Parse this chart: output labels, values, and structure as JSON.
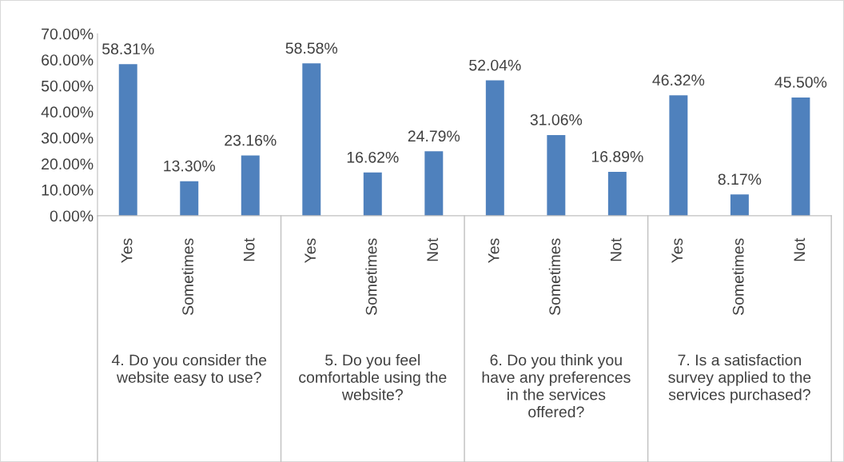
{
  "chart_data": {
    "type": "bar",
    "categories": [
      "Yes",
      "Sometimes",
      "Not",
      "Yes",
      "Sometimes",
      "Not",
      "Yes",
      "Sometimes",
      "Not",
      "Yes",
      "Sometimes",
      "Not"
    ],
    "values": [
      58.31,
      13.3,
      23.16,
      58.58,
      16.62,
      24.79,
      52.04,
      31.06,
      16.89,
      46.32,
      8.17,
      45.5
    ],
    "value_labels": [
      "58.31%",
      "13.30%",
      "23.16%",
      "58.58%",
      "16.62%",
      "24.79%",
      "52.04%",
      "31.06%",
      "16.89%",
      "46.32%",
      "8.17%",
      "45.50%"
    ],
    "color": "#4f81bd",
    "ylim": [
      0,
      70
    ],
    "yticks": [
      {
        "value": 0,
        "label": "0.00%"
      },
      {
        "value": 10,
        "label": "10.00%"
      },
      {
        "value": 20,
        "label": "20.00%"
      },
      {
        "value": 30,
        "label": "30.00%"
      },
      {
        "value": 40,
        "label": "40.00%"
      },
      {
        "value": 50,
        "label": "50.00%"
      },
      {
        "value": 60,
        "label": "60.00%"
      },
      {
        "value": 70,
        "label": "70.00%"
      }
    ],
    "annotations": [
      "4. Do you consider the\nwebsite easy to use?",
      "5. Do you feel\ncomfortable using the\nwebsite?",
      "6. Do you think you\nhave any preferences\nin the services\noffered?",
      "7. Is a satisfaction\nsurvey applied to the\nservices purchased?"
    ],
    "grid": false,
    "legend": false
  }
}
